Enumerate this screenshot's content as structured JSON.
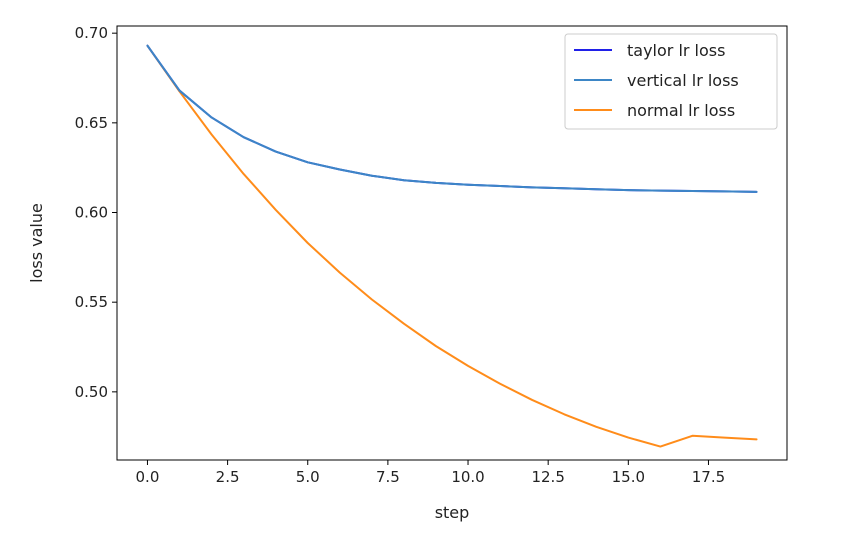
{
  "chart_data": {
    "type": "line",
    "title": "",
    "xlabel": "step",
    "ylabel": "loss value",
    "xlim": [
      -0.95,
      19.95
    ],
    "ylim": [
      0.462,
      0.704
    ],
    "grid": false,
    "legend_position": "upper right",
    "x_ticks": [
      0.0,
      2.5,
      5.0,
      7.5,
      10.0,
      12.5,
      15.0,
      17.5
    ],
    "x_tick_labels": [
      "0.0",
      "2.5",
      "5.0",
      "7.5",
      "10.0",
      "12.5",
      "15.0",
      "17.5"
    ],
    "y_ticks": [
      0.5,
      0.55,
      0.6,
      0.65,
      0.7
    ],
    "y_tick_labels": [
      "0.50",
      "0.55",
      "0.60",
      "0.65",
      "0.70"
    ],
    "x": [
      0,
      1,
      2,
      3,
      4,
      5,
      6,
      7,
      8,
      9,
      10,
      11,
      12,
      13,
      14,
      15,
      16,
      17,
      18,
      19
    ],
    "series": [
      {
        "name": "taylor lr loss",
        "color": "#2020e8",
        "values": [
          0.693,
          0.668,
          0.653,
          0.642,
          0.634,
          0.628,
          0.624,
          0.6205,
          0.618,
          0.6165,
          0.6155,
          0.6148,
          0.614,
          0.6135,
          0.613,
          0.6125,
          0.6122,
          0.612,
          0.6118,
          0.6115
        ]
      },
      {
        "name": "vertical lr loss",
        "color": "#3d86c6",
        "values": [
          0.693,
          0.668,
          0.653,
          0.642,
          0.634,
          0.628,
          0.624,
          0.6205,
          0.618,
          0.6165,
          0.6155,
          0.6148,
          0.614,
          0.6135,
          0.613,
          0.6125,
          0.6122,
          0.612,
          0.6118,
          0.6115
        ]
      },
      {
        "name": "normal lr loss",
        "color": "#ff8c1a",
        "values": [
          0.693,
          0.6675,
          0.6435,
          0.6215,
          0.6015,
          0.583,
          0.5665,
          0.5515,
          0.538,
          0.5255,
          0.5145,
          0.5045,
          0.4955,
          0.4875,
          0.4805,
          0.4745,
          0.4695,
          0.4755,
          0.4745,
          0.4735
        ]
      }
    ]
  }
}
